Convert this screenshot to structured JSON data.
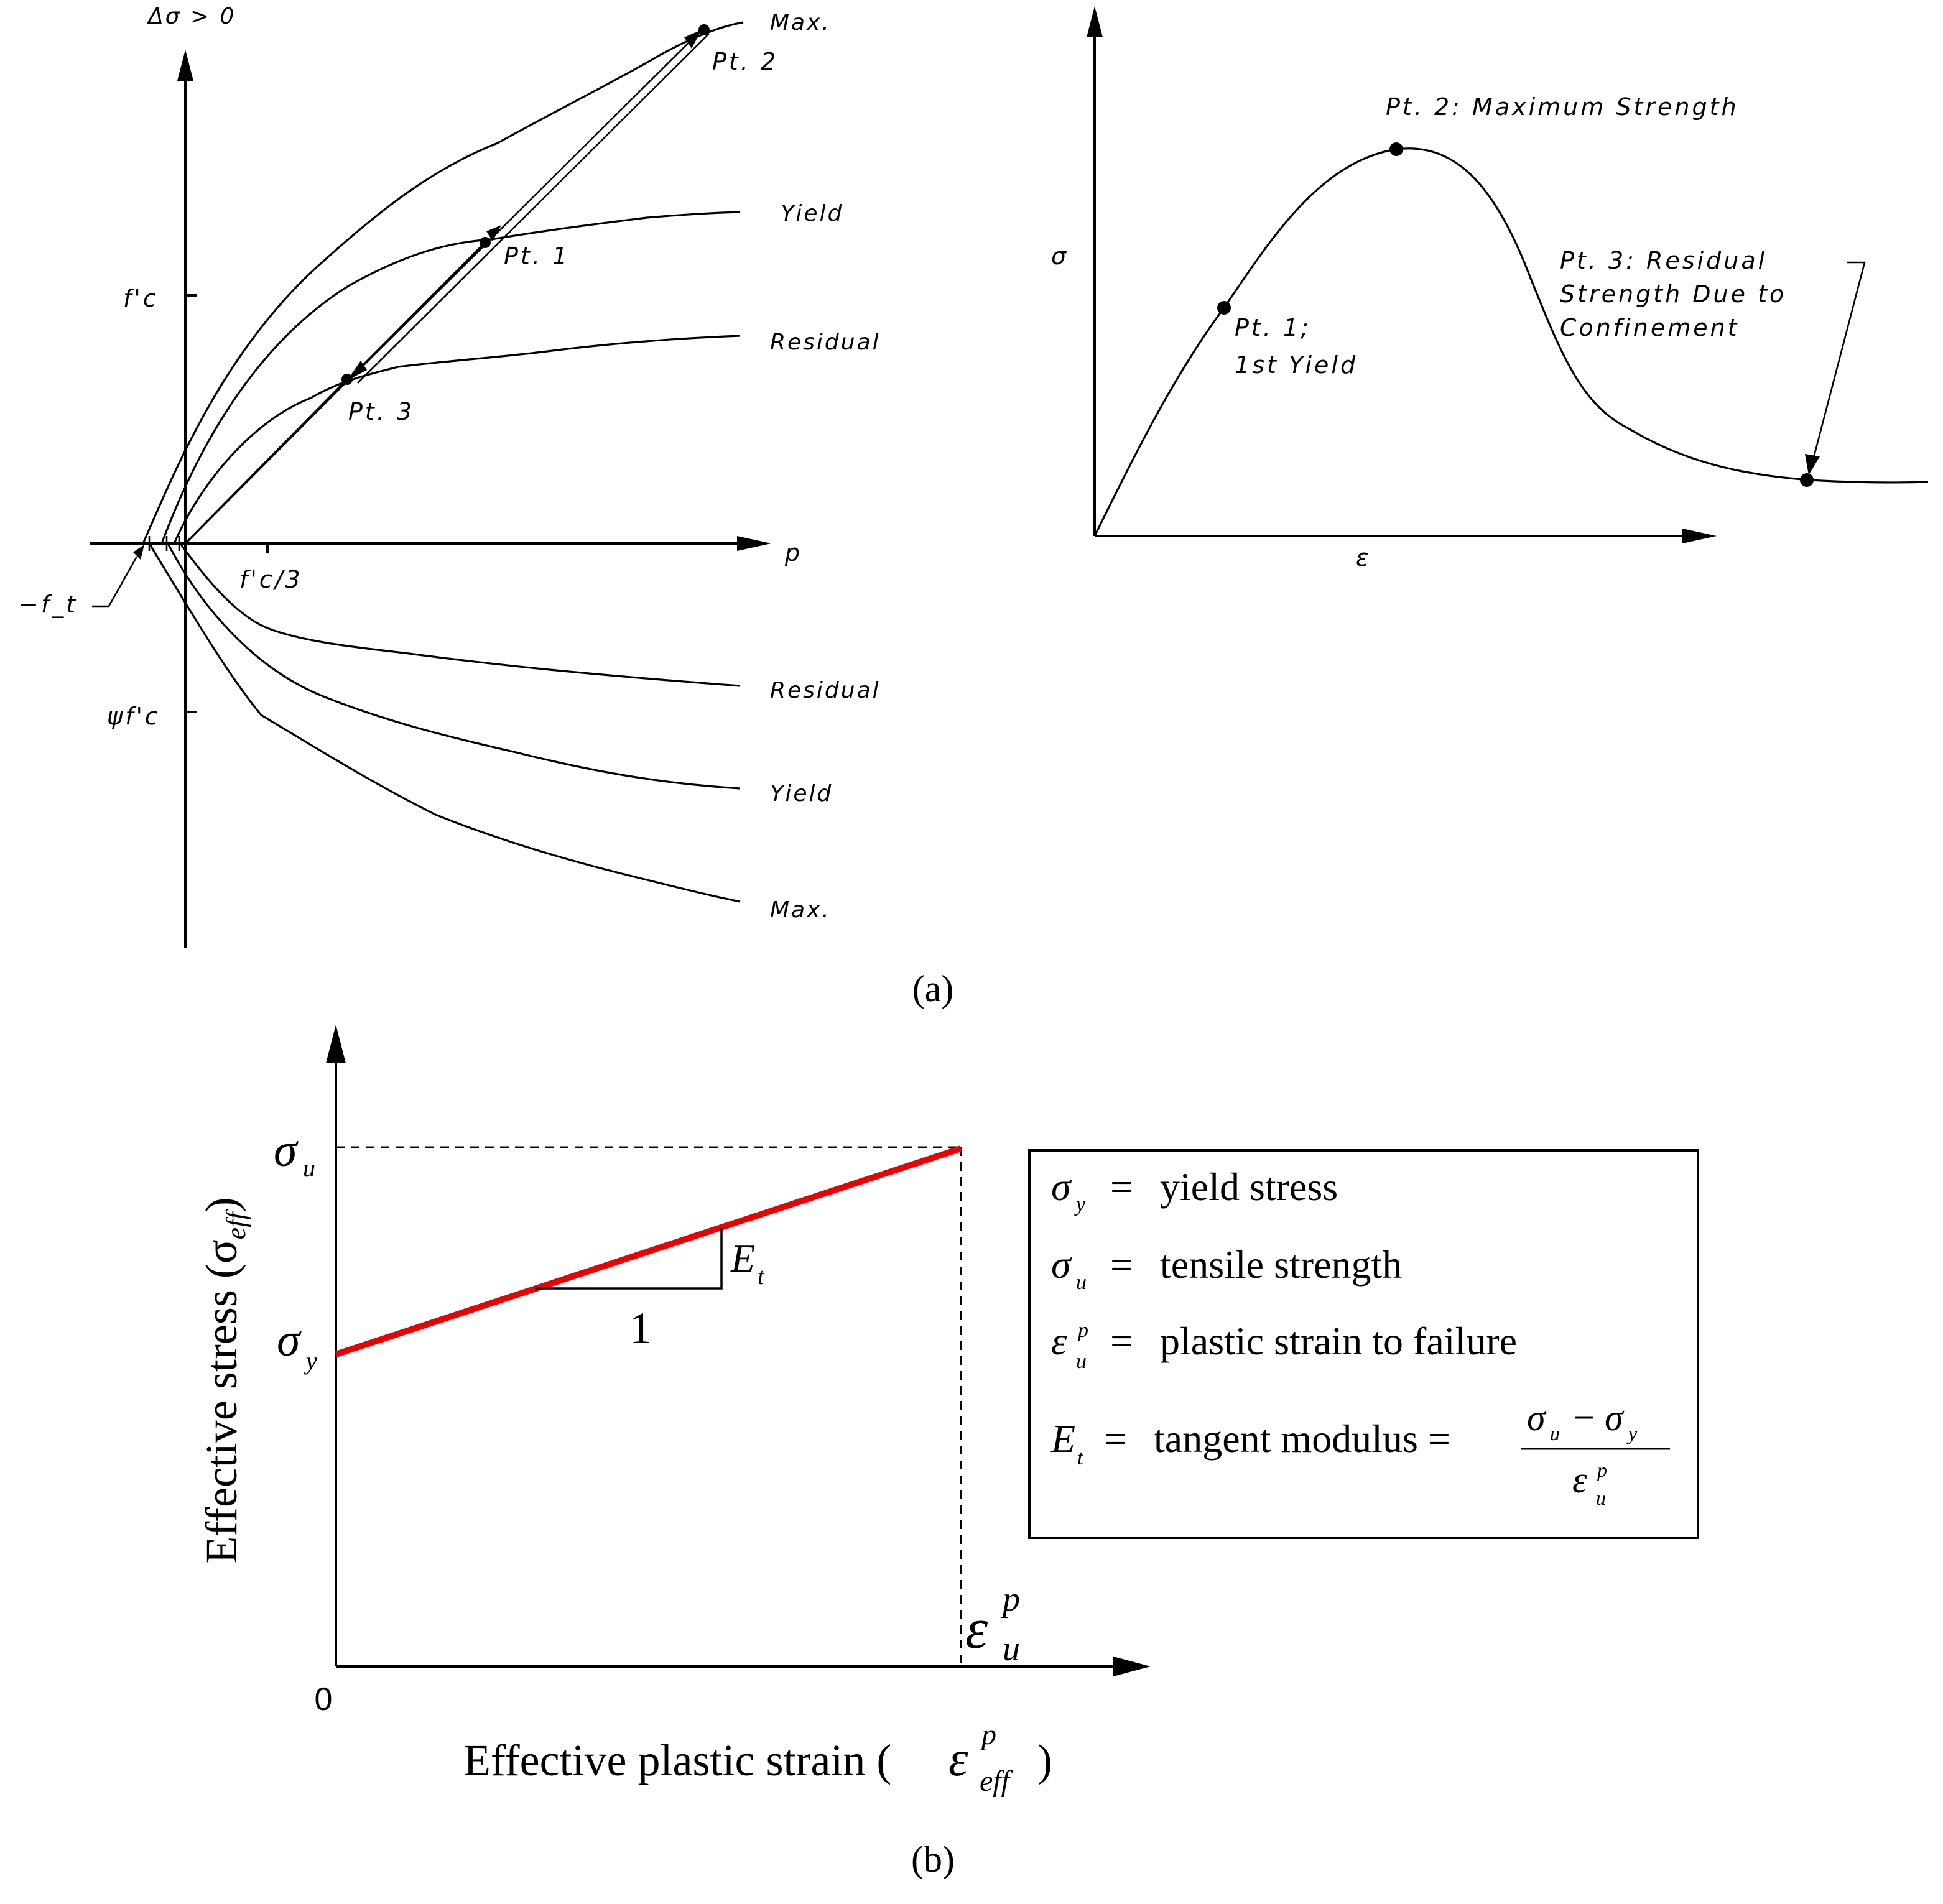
{
  "panel_a": {
    "caption": "(a)",
    "left": {
      "y_axis_label": "Δσ > 0",
      "x_axis_label": "p",
      "y_ticks": {
        "fc": "f'c",
        "psi_fc": "ψf'c"
      },
      "x_tick": "f'c/3",
      "ft_label": "−f_t",
      "upper_curves": {
        "max": "Max.",
        "yield": "Yield",
        "residual": "Residual"
      },
      "lower_curves": {
        "residual": "Residual",
        "yield": "Yield",
        "max": "Max."
      },
      "points": {
        "pt1": "Pt.  1",
        "pt2": "Pt.  2",
        "pt3": "Pt.  3"
      }
    },
    "right": {
      "y_axis_label": "σ",
      "x_axis_label": "ε",
      "pt2_label": "Pt.  2:   Maximum  Strength",
      "pt1_label": [
        "Pt.  1;",
        "1st  Yield"
      ],
      "pt3_label": [
        "Pt.  3:   Residual",
        "Strength  Due  to",
        "Confinement"
      ]
    }
  },
  "panel_b": {
    "caption": "(b)",
    "y_axis_label": "Effective stress (σ",
    "y_axis_sub": "eff",
    "x_axis_label": "Effective plastic strain (",
    "origin": "0",
    "slope_run": "1",
    "legend": {
      "row1_text": "yield stress",
      "row2_text": "tensile strength",
      "row3_text": "plastic strain to failure",
      "row4_text": "tangent modulus ="
    },
    "line_color": "#ee0000"
  }
}
